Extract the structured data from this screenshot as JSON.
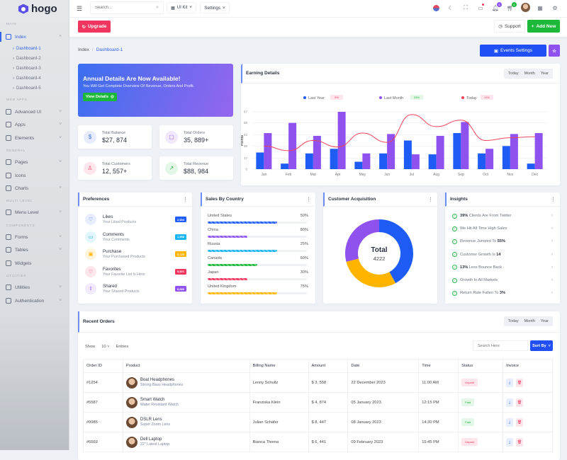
{
  "brand": "hogo",
  "sidebar": {
    "sections": {
      "main": "MAIN",
      "web_apps": "WEB APPS",
      "general": "GENERAL",
      "multi_level": "MULTI LEVEL",
      "components": "COMPONENTS",
      "utilities": "UTILITIES"
    },
    "index": "Index",
    "dashboards": [
      "Dashboard-1",
      "Dashboard-2",
      "Dashboard-3",
      "Dashboard-4",
      "Dashboard-5"
    ],
    "items": {
      "advanced_ui": "Advanced UI",
      "apps": "Apps",
      "elements": "Elements",
      "pages": "Pages",
      "icons": "Icons",
      "charts": "Charts",
      "menu_level": "Menu Level",
      "forms": "Forms",
      "tables": "Tables",
      "widgets": "Widgets",
      "utilities": "Utilities",
      "authentication": "Authentication"
    }
  },
  "header": {
    "search_placeholder": "Search...",
    "ui_kit": "UI Kit",
    "settings": "Settings",
    "notif_count": "5",
    "cart_count": "5"
  },
  "subheader": {
    "upgrade": "Upgrade",
    "support": "Support",
    "add_new": "Add New"
  },
  "breadcrumb": {
    "root": "Index",
    "current": "Dashboard-1"
  },
  "events_settings": "Events Settings",
  "banner": {
    "title": "Annual Details Are Now Available!",
    "subtitle": "You Will Get Complete Overview Of Revenue, Orders And Profit.",
    "button": "View Details"
  },
  "stats": [
    {
      "label": "Total Balance",
      "value": "$27, 874",
      "color": "#3b6ff0",
      "bg": "#e6ecfd"
    },
    {
      "label": "Total Orders",
      "value": "35, 889+",
      "color": "#9b5de5",
      "bg": "#f1e8fc"
    },
    {
      "label": "Total Customers",
      "value": "12, 557+",
      "color": "#f0456b",
      "bg": "#fde6ec"
    },
    {
      "label": "Total Revenue",
      "value": "$88, 984",
      "color": "#28b54a",
      "bg": "#e3f6e7"
    }
  ],
  "periods": [
    "Today",
    "Month",
    "Year"
  ],
  "earning": {
    "title": "Earning Details"
  },
  "chart_data": {
    "type": "bar",
    "title": "Earning Details",
    "ylabel": "Points",
    "categories": [
      "Jan",
      "Feb",
      "Mar",
      "Apr",
      "May",
      "Jun",
      "Jul",
      "Aug",
      "Sep",
      "Oct",
      "Nov",
      "Dec"
    ],
    "yticks": [
      5,
      17,
      30,
      42,
      55,
      67
    ],
    "ylim": [
      5,
      67
    ],
    "series": [
      {
        "name": "Last Year",
        "type": "bar",
        "color": "#1f5bf5",
        "change": "5%",
        "change_dir": "down",
        "values": [
          23,
          11,
          22,
          27,
          13,
          22,
          36,
          21,
          44,
          22,
          30,
          11
        ]
      },
      {
        "name": "Last Month",
        "type": "bar",
        "color": "#8f52ee",
        "change": "33%",
        "change_dir": "up",
        "values": [
          44,
          55,
          41,
          67,
          22,
          43,
          21,
          41,
          56,
          27,
          43,
          44
        ]
      },
      {
        "name": "Today",
        "type": "line",
        "color": "#f0455a",
        "change": "11%",
        "change_dir": "down",
        "values": [
          30,
          25,
          36,
          29,
          44,
          34,
          64,
          51,
          58,
          36,
          39,
          40
        ]
      }
    ]
  },
  "preferences": {
    "title": "Preferences",
    "items": [
      {
        "title": "Likes",
        "sub": "Your Liked Products",
        "badge": "2,554",
        "color": "#1f5bf5",
        "bg": "#e8eefe"
      },
      {
        "title": "Comments",
        "sub": "Your Comments",
        "badge": "1,558",
        "color": "#17b4f0",
        "bg": "#e3f6fd"
      },
      {
        "title": "Purchase",
        "sub": "Your Purchased Products",
        "badge": "5,725",
        "color": "#ffb400",
        "bg": "#fff5dd"
      },
      {
        "title": "Favorites",
        "sub": "Your Favorite List Is Here",
        "badge": "5,521",
        "color": "#f0365f",
        "bg": "#fde6eb"
      },
      {
        "title": "Shared",
        "sub": "Your Shared Products",
        "badge": "8,889",
        "color": "#8f52ee",
        "bg": "#f1e9fd"
      }
    ]
  },
  "sales_by_country": {
    "title": "Sales By Country",
    "items": [
      {
        "name": "United States",
        "pct": "50%",
        "fill": 0.7,
        "color": "#1f5bf5"
      },
      {
        "name": "China",
        "pct": "80%",
        "fill": 0.4,
        "color": "#8f52ee"
      },
      {
        "name": "Russia",
        "pct": "25%",
        "fill": 0.7,
        "color": "#17b4f0"
      },
      {
        "name": "Canada",
        "pct": "60%",
        "fill": 0.5,
        "color": "#1cb83a"
      },
      {
        "name": "Japan",
        "pct": "30%",
        "fill": 0.4,
        "color": "#f0365f"
      },
      {
        "name": "United Kingdom",
        "pct": "75%",
        "fill": 0.7,
        "color": "#ffb400"
      }
    ]
  },
  "acquisition": {
    "title": "Customer Acquisition",
    "total_label": "Total",
    "total": "4222",
    "segments": [
      {
        "value": 42,
        "color": "#1f5bf5"
      },
      {
        "value": 29,
        "color": "#ffb400"
      },
      {
        "value": 29,
        "color": "#8f52ee"
      }
    ]
  },
  "insights": {
    "title": "Insights",
    "items": [
      {
        "strong": "39%",
        "text": " Clients Are From Twitter",
        "strong_first": true
      },
      {
        "strong": "",
        "text": "We Hit All Time High Sales",
        "strong_first": true
      },
      {
        "strong": "55%",
        "text": "Revenue Jumped To ",
        "strong_first": false
      },
      {
        "strong": "14",
        "text": "Customer Growth Is ",
        "strong_first": false
      },
      {
        "strong": "13%",
        "text": " Less Bounce Back",
        "strong_first": true
      },
      {
        "strong": "",
        "text": "Growth In All Markets",
        "strong_first": true
      },
      {
        "strong": "3%",
        "text": "Return Rate Fallen To ",
        "strong_first": false
      }
    ]
  },
  "orders": {
    "title": "Recent Orders",
    "show": "Show",
    "entries_value": "10",
    "entries": "Entries",
    "search_placeholder": "Search Here",
    "sort_by": "Sort By",
    "columns": [
      "Order ID",
      "Product",
      "Billing Name",
      "Amount",
      "Date",
      "Time",
      "Status",
      "Invoice"
    ],
    "rows": [
      {
        "id": "#1254",
        "product": "Boat Headphones",
        "sub": "Strong Bass Headphones",
        "billing": "Lenny Schultz",
        "amount": "$ 3, 558",
        "date": "22 December 2023",
        "time": "11:00 AM",
        "status": "Unpaid"
      },
      {
        "id": "#5587",
        "product": "Smart Watch",
        "sub": "Water Resistant Watch",
        "billing": "Franziska Klein",
        "amount": "$ 4, 874",
        "date": "05 January 2023",
        "time": "12:15 PM",
        "status": "Paid"
      },
      {
        "id": "#9985",
        "product": "DSLR Lens",
        "sub": "Super Zoom Lens",
        "billing": "Julian Schäfer",
        "amount": "$ 8, 447",
        "date": "08 January 2023",
        "time": "14:30 PM",
        "status": "Paid"
      },
      {
        "id": "#6669",
        "product": "Dell Laptop",
        "sub": "22\" Latest Laptop",
        "billing": "Bianca Thoma",
        "amount": "$ 6, 441",
        "date": "09 February 2023",
        "time": "15:45 PM",
        "status": "Unpaid"
      }
    ]
  }
}
